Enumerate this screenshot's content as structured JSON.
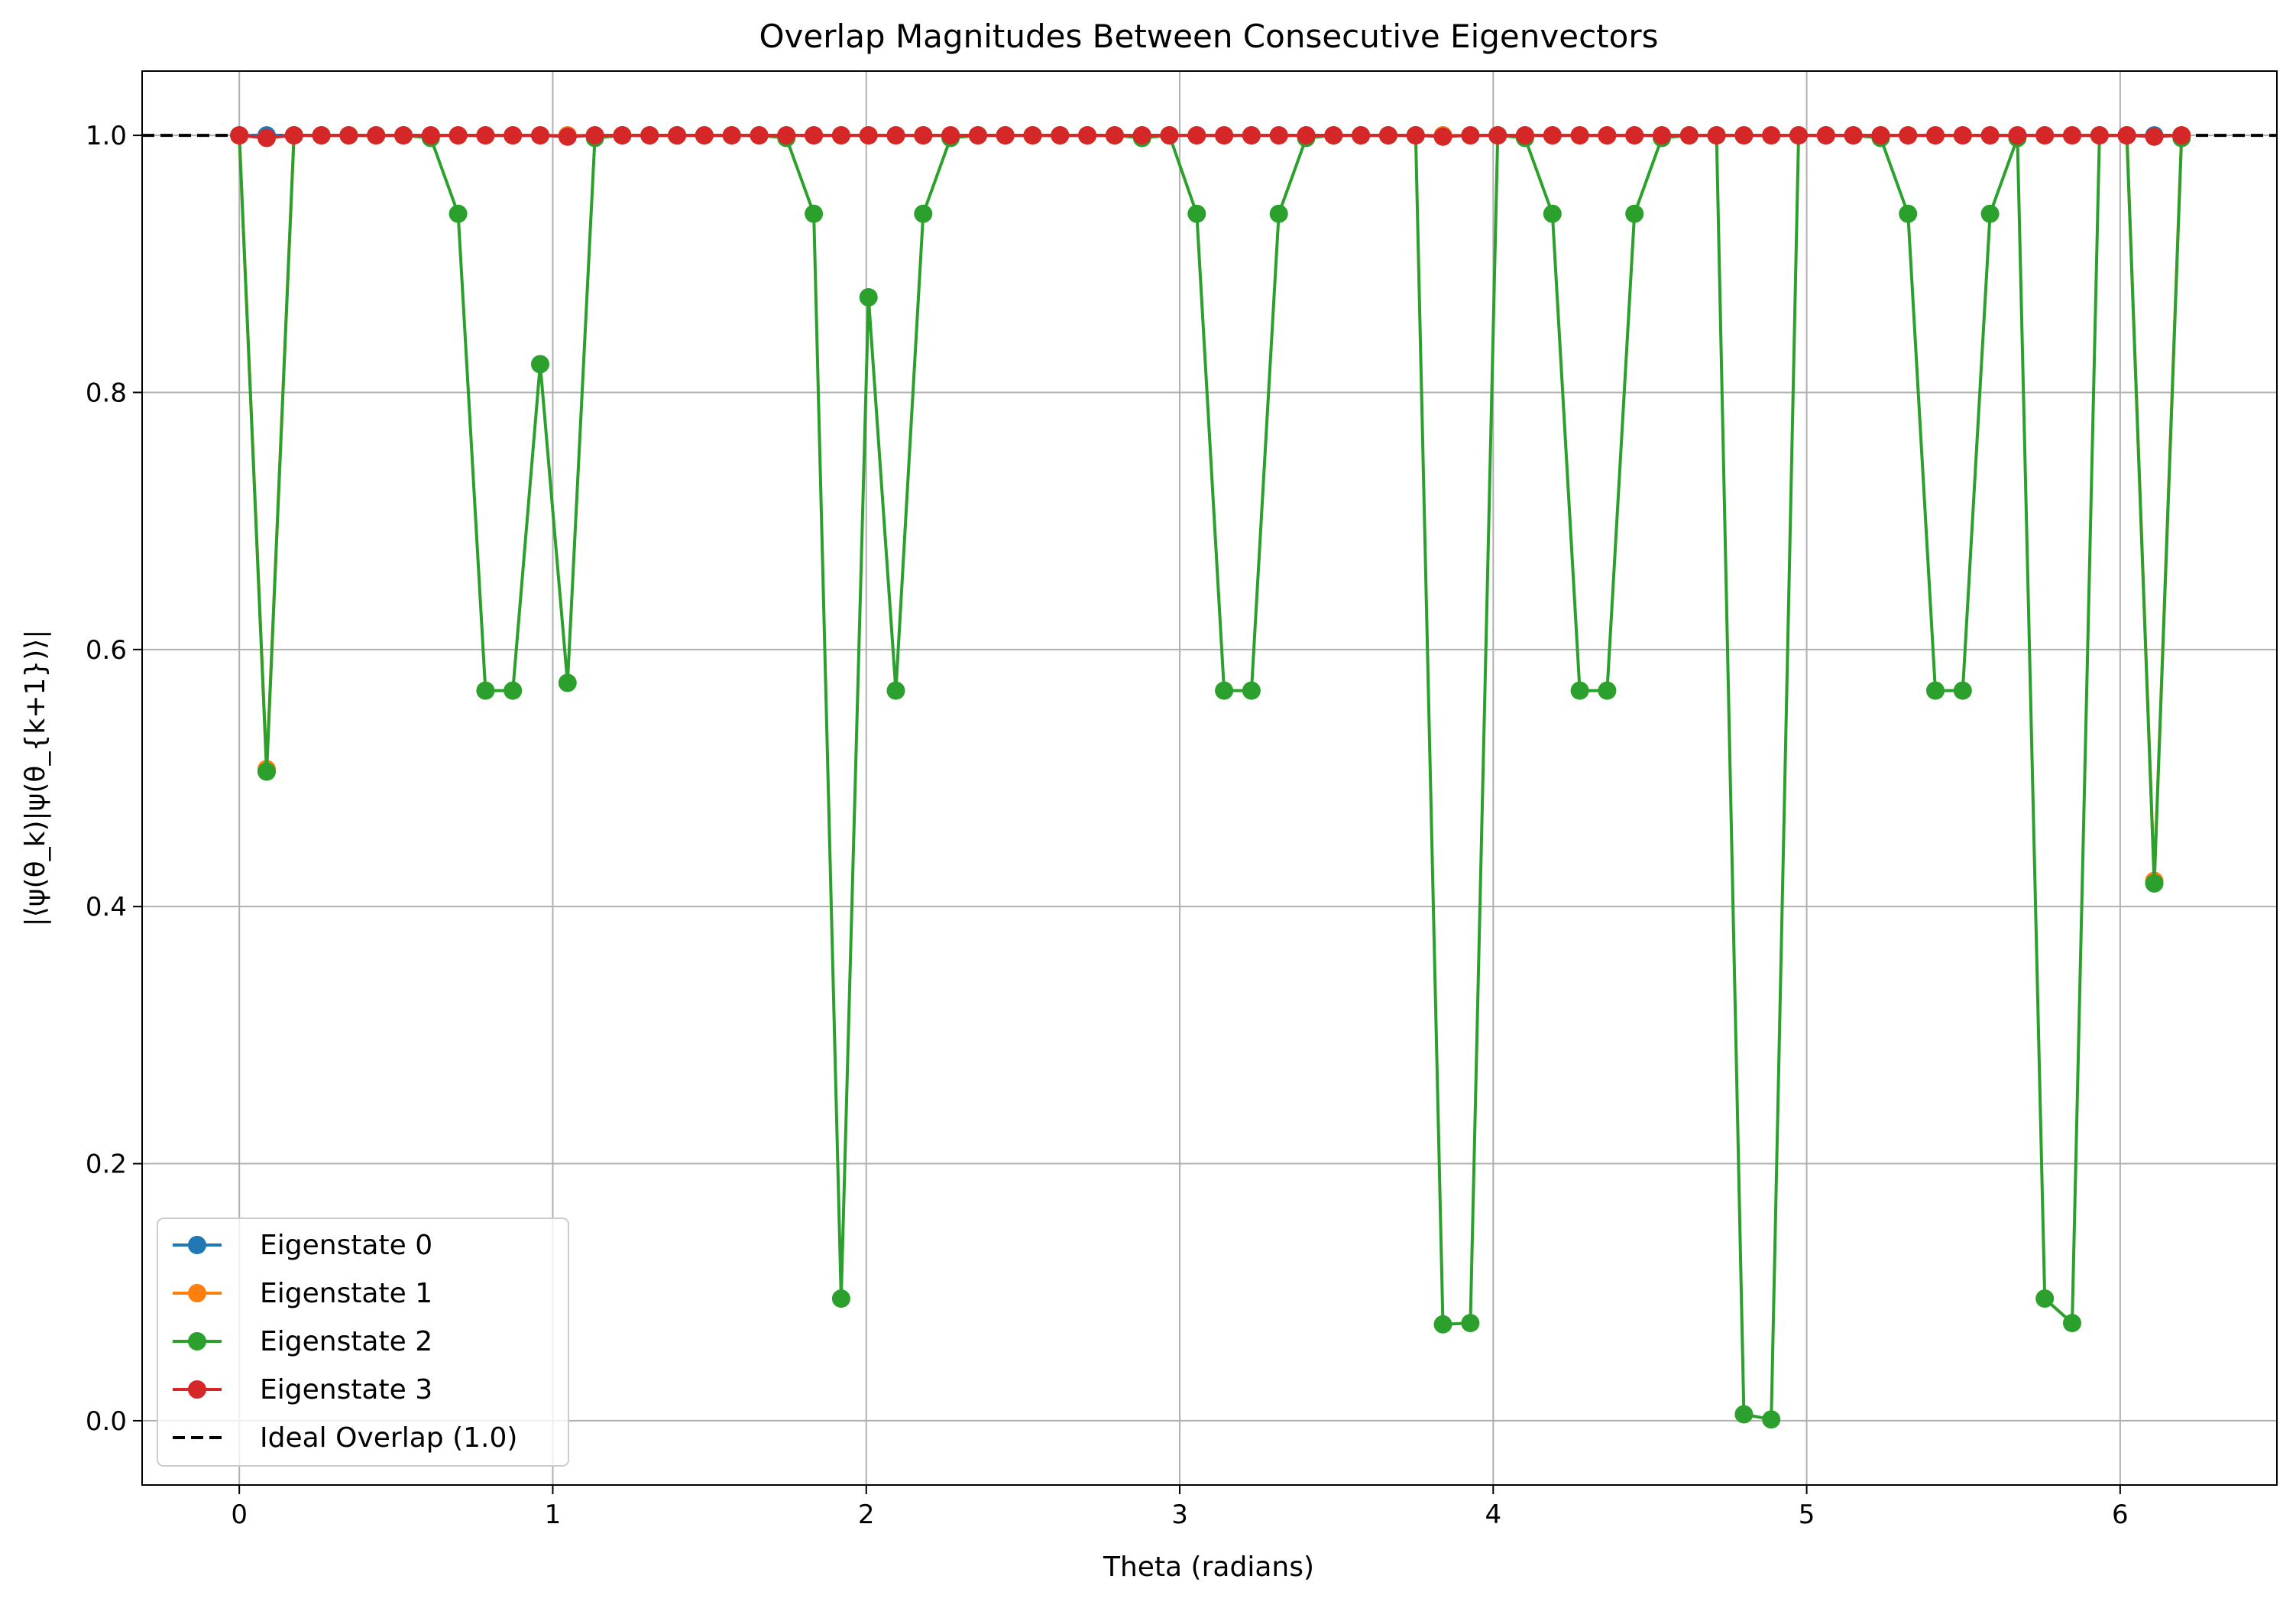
{
  "chart_data": {
    "type": "line",
    "title": "Overlap Magnitudes Between Consecutive Eigenvectors",
    "xlabel": "Theta (radians)",
    "ylabel": "|⟨ψ(θ_k)|ψ(θ_{k+1})⟩|",
    "xlim": [
      -0.31,
      6.5
    ],
    "ylim": [
      -0.05,
      1.05
    ],
    "xticks": [
      0,
      1,
      2,
      3,
      4,
      5,
      6
    ],
    "yticks": [
      0.0,
      0.2,
      0.4,
      0.6,
      0.8,
      1.0
    ],
    "grid": true,
    "legend_position": "lower-left",
    "x": [
      0.0,
      0.0873,
      0.1745,
      0.2618,
      0.3491,
      0.4363,
      0.5236,
      0.6109,
      0.6981,
      0.7854,
      0.8727,
      0.9599,
      1.0472,
      1.1345,
      1.2217,
      1.309,
      1.3963,
      1.4835,
      1.5708,
      1.6581,
      1.7453,
      1.8326,
      1.9199,
      2.0071,
      2.0944,
      2.1817,
      2.2689,
      2.3562,
      2.4435,
      2.5307,
      2.618,
      2.7053,
      2.7925,
      2.8798,
      2.9671,
      3.0543,
      3.1416,
      3.2289,
      3.3161,
      3.4034,
      3.4907,
      3.5779,
      3.6652,
      3.7525,
      3.8397,
      3.927,
      4.0143,
      4.1015,
      4.1888,
      4.2761,
      4.3633,
      4.4506,
      4.5379,
      4.6251,
      4.7124,
      4.7997,
      4.8869,
      4.9742,
      5.0615,
      5.1487,
      5.236,
      5.3233,
      5.4105,
      5.4978,
      5.5851,
      5.6723,
      5.7596,
      5.8469,
      5.9341,
      6.0214,
      6.1087,
      6.1959
    ],
    "series": [
      {
        "name": "Eigenstate 0",
        "color": "#1f77b4",
        "values": [
          1.0,
          1.0,
          1.0,
          1.0,
          1.0,
          1.0,
          1.0,
          1.0,
          1.0,
          1.0,
          1.0,
          1.0,
          1.0,
          1.0,
          1.0,
          1.0,
          1.0,
          1.0,
          1.0,
          1.0,
          1.0,
          1.0,
          1.0,
          1.0,
          1.0,
          1.0,
          1.0,
          1.0,
          1.0,
          1.0,
          1.0,
          1.0,
          1.0,
          1.0,
          1.0,
          1.0,
          1.0,
          1.0,
          1.0,
          1.0,
          1.0,
          1.0,
          1.0,
          1.0,
          1.0,
          1.0,
          1.0,
          1.0,
          1.0,
          1.0,
          1.0,
          1.0,
          1.0,
          1.0,
          1.0,
          1.0,
          1.0,
          1.0,
          1.0,
          1.0,
          1.0,
          1.0,
          1.0,
          1.0,
          1.0,
          1.0,
          1.0,
          1.0,
          1.0,
          1.0,
          1.0,
          1.0
        ]
      },
      {
        "name": "Eigenstate 1",
        "color": "#ff7f0e",
        "values": [
          1.0,
          0.507,
          1.0,
          1.0,
          1.0,
          1.0,
          1.0,
          1.0,
          1.0,
          1.0,
          1.0,
          1.0,
          1.0,
          1.0,
          1.0,
          1.0,
          1.0,
          1.0,
          1.0,
          1.0,
          1.0,
          1.0,
          1.0,
          1.0,
          1.0,
          1.0,
          1.0,
          1.0,
          1.0,
          1.0,
          1.0,
          1.0,
          1.0,
          1.0,
          1.0,
          1.0,
          1.0,
          1.0,
          1.0,
          1.0,
          1.0,
          1.0,
          1.0,
          1.0,
          1.0,
          1.0,
          1.0,
          1.0,
          1.0,
          1.0,
          1.0,
          1.0,
          1.0,
          1.0,
          1.0,
          1.0,
          1.0,
          1.0,
          1.0,
          1.0,
          1.0,
          1.0,
          1.0,
          1.0,
          1.0,
          1.0,
          1.0,
          1.0,
          1.0,
          1.0,
          0.42,
          1.0
        ]
      },
      {
        "name": "Eigenstate 2",
        "color": "#2ca02c",
        "values": [
          1.0,
          0.505,
          1.0,
          1.0,
          1.0,
          1.0,
          1.0,
          0.998,
          0.939,
          0.568,
          0.568,
          0.822,
          0.574,
          0.998,
          1.0,
          1.0,
          1.0,
          1.0,
          1.0,
          1.0,
          0.998,
          0.939,
          0.095,
          0.874,
          0.568,
          0.939,
          0.998,
          1.0,
          1.0,
          1.0,
          1.0,
          1.0,
          1.0,
          0.998,
          1.0,
          0.939,
          0.568,
          0.568,
          0.939,
          0.998,
          1.0,
          1.0,
          1.0,
          1.0,
          0.075,
          0.076,
          1.0,
          0.998,
          0.939,
          0.568,
          0.568,
          0.939,
          0.998,
          1.0,
          1.0,
          0.005,
          0.001,
          1.0,
          1.0,
          1.0,
          0.998,
          0.939,
          0.568,
          0.568,
          0.939,
          0.998,
          0.095,
          0.076,
          1.0,
          1.0,
          0.418,
          0.998
        ]
      },
      {
        "name": "Eigenstate 3",
        "color": "#d62728",
        "values": [
          1.0,
          0.998,
          1.0,
          1.0,
          1.0,
          1.0,
          1.0,
          1.0,
          1.0,
          1.0,
          1.0,
          1.0,
          0.999,
          1.0,
          1.0,
          1.0,
          1.0,
          1.0,
          1.0,
          1.0,
          1.0,
          1.0,
          1.0,
          1.0,
          1.0,
          1.0,
          1.0,
          1.0,
          1.0,
          1.0,
          1.0,
          1.0,
          1.0,
          1.0,
          1.0,
          1.0,
          1.0,
          1.0,
          1.0,
          1.0,
          1.0,
          1.0,
          1.0,
          1.0,
          0.999,
          1.0,
          1.0,
          1.0,
          1.0,
          1.0,
          1.0,
          1.0,
          1.0,
          1.0,
          1.0,
          1.0,
          1.0,
          1.0,
          1.0,
          1.0,
          1.0,
          1.0,
          1.0,
          1.0,
          1.0,
          1.0,
          1.0,
          1.0,
          1.0,
          1.0,
          0.999,
          1.0
        ]
      }
    ],
    "reference_line": {
      "name": "Ideal Overlap (1.0)",
      "y": 1.0,
      "color": "#000000",
      "style": "dashed"
    }
  }
}
